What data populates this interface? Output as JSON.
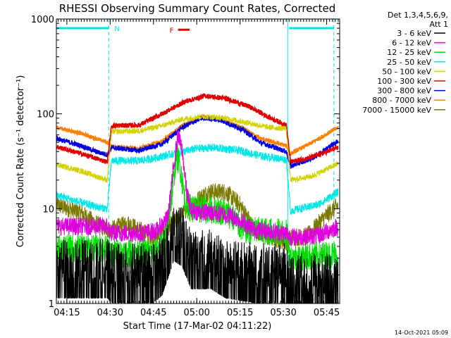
{
  "chart_data": {
    "type": "line",
    "title": "RHESSI Observing Summary Count Rates, Corrected",
    "ylabel": "Corrected Count Rate (s⁻¹ detector⁻¹)",
    "xlabel": "Start Time (17-Mar-02 04:11:22)",
    "footer": "14-Oct-2021 05:09",
    "y_scale": "log",
    "ylim": [
      1,
      1000
    ],
    "xlim": [
      "04:11:22",
      "05:49:30"
    ],
    "y_ticks": [
      {
        "value": 1,
        "label": "1"
      },
      {
        "value": 10,
        "label": "10"
      },
      {
        "value": 100,
        "label": "100"
      },
      {
        "value": 1000,
        "label": "1000"
      }
    ],
    "x_ticks": [
      "04:15",
      "04:30",
      "04:45",
      "05:00",
      "05:15",
      "05:30",
      "05:45"
    ],
    "legend": {
      "position": "right",
      "header": [
        "Det 1,3,4,5,6,9,",
        "Att 1"
      ]
    },
    "flags": [
      {
        "label": "N",
        "color": "#00e5e5",
        "level": 800,
        "spans": [
          [
            "04:11:22",
            "04:29:30"
          ],
          [
            "05:32:00",
            "05:47:30"
          ]
        ]
      },
      {
        "label": "F",
        "color": "#e00000",
        "level": 770,
        "spans": [
          [
            "04:53:30",
            "04:57:30"
          ]
        ]
      }
    ],
    "night_lines": [
      {
        "time": "04:29:30",
        "style": "dashed"
      },
      {
        "time": "05:31:30",
        "style": "solid"
      },
      {
        "time": "05:47:30",
        "style": "dashed"
      }
    ],
    "series": [
      {
        "name": "3 - 6 keV",
        "color": "#000000",
        "points": [
          [
            "04:11:30",
            2.8
          ],
          [
            "04:29:00",
            2.8
          ],
          [
            "04:30:30",
            2.5
          ],
          [
            "04:45:00",
            2.5
          ],
          [
            "04:48:00",
            3.0
          ],
          [
            "04:50:00",
            4.5
          ],
          [
            "04:52:00",
            7.0
          ],
          [
            "04:55:00",
            6.0
          ],
          [
            "04:58:00",
            3.5
          ],
          [
            "05:05:00",
            3.5
          ],
          [
            "05:10:00",
            2.8
          ],
          [
            "05:20:00",
            2.5
          ],
          [
            "05:31:00",
            2.5
          ],
          [
            "05:32:30",
            2.0
          ],
          [
            "05:49:00",
            2.0
          ]
        ]
      },
      {
        "name": "6 - 12 keV",
        "color": "#e000e0",
        "points": [
          [
            "04:11:30",
            6.5
          ],
          [
            "04:29:00",
            6.5
          ],
          [
            "04:30:30",
            5.5
          ],
          [
            "04:40:00",
            5.5
          ],
          [
            "04:46:00",
            5.8
          ],
          [
            "04:50:00",
            8.0
          ],
          [
            "04:52:00",
            28
          ],
          [
            "04:53:30",
            60
          ],
          [
            "04:55:00",
            40
          ],
          [
            "04:56:30",
            15
          ],
          [
            "04:58:00",
            9.5
          ],
          [
            "05:05:00",
            9.0
          ],
          [
            "05:12:00",
            8.5
          ],
          [
            "05:20:00",
            6.0
          ],
          [
            "05:31:00",
            5.5
          ],
          [
            "05:32:30",
            5.0
          ],
          [
            "05:42:00",
            5.2
          ],
          [
            "05:49:00",
            6.5
          ]
        ]
      },
      {
        "name": "12 - 25 keV",
        "color": "#00e000",
        "points": [
          [
            "04:11:30",
            3.8
          ],
          [
            "04:29:00",
            3.8
          ],
          [
            "04:30:30",
            3.4
          ],
          [
            "04:45:00",
            3.4
          ],
          [
            "04:49:00",
            4.5
          ],
          [
            "04:51:30",
            15
          ],
          [
            "04:53:00",
            38
          ],
          [
            "04:54:30",
            25
          ],
          [
            "04:56:00",
            12
          ],
          [
            "04:58:00",
            10
          ],
          [
            "05:08:00",
            9.5
          ],
          [
            "05:12:00",
            8.5
          ],
          [
            "05:16:00",
            6.0
          ],
          [
            "05:31:00",
            5.5
          ],
          [
            "05:32:30",
            3.0
          ],
          [
            "05:49:00",
            3.3
          ]
        ]
      },
      {
        "name": "25 - 50 keV",
        "color": "#00e8e8",
        "points": [
          [
            "04:11:30",
            14
          ],
          [
            "04:18:00",
            12
          ],
          [
            "04:25:00",
            10.5
          ],
          [
            "04:29:00",
            10
          ],
          [
            "04:30:30",
            32
          ],
          [
            "04:40:00",
            32
          ],
          [
            "04:45:00",
            34
          ],
          [
            "04:52:00",
            38
          ],
          [
            "05:00:00",
            43
          ],
          [
            "05:06:00",
            44
          ],
          [
            "05:15:00",
            41
          ],
          [
            "05:22:00",
            36
          ],
          [
            "05:31:00",
            33
          ],
          [
            "05:32:30",
            9.5
          ],
          [
            "05:42:00",
            11
          ],
          [
            "05:49:00",
            15
          ]
        ]
      },
      {
        "name": "50 - 100 keV",
        "color": "#d2d200",
        "points": [
          [
            "04:11:30",
            29
          ],
          [
            "04:20:00",
            25
          ],
          [
            "04:25:00",
            22
          ],
          [
            "04:29:00",
            20
          ],
          [
            "04:30:30",
            65
          ],
          [
            "04:40:00",
            66
          ],
          [
            "04:48:00",
            75
          ],
          [
            "04:55:00",
            88
          ],
          [
            "05:02:00",
            94
          ],
          [
            "05:10:00",
            90
          ],
          [
            "05:18:00",
            80
          ],
          [
            "05:25:00",
            72
          ],
          [
            "05:31:00",
            70
          ],
          [
            "05:32:30",
            20
          ],
          [
            "05:40:00",
            22
          ],
          [
            "05:49:00",
            30
          ]
        ]
      },
      {
        "name": "100 - 300 keV",
        "color": "#e00000",
        "points": [
          [
            "04:11:30",
            45
          ],
          [
            "04:20:00",
            38
          ],
          [
            "04:25:00",
            34
          ],
          [
            "04:29:00",
            31
          ],
          [
            "04:30:30",
            75
          ],
          [
            "04:40:00",
            76
          ],
          [
            "04:48:00",
            100
          ],
          [
            "04:56:00",
            135
          ],
          [
            "05:03:00",
            155
          ],
          [
            "05:10:00",
            145
          ],
          [
            "05:18:00",
            120
          ],
          [
            "05:25:00",
            92
          ],
          [
            "05:31:00",
            76
          ],
          [
            "05:32:30",
            31
          ],
          [
            "05:40:00",
            35
          ],
          [
            "05:49:00",
            44
          ]
        ]
      },
      {
        "name": "300 - 800 keV",
        "color": "#0000e0",
        "points": [
          [
            "04:11:30",
            55
          ],
          [
            "04:20:00",
            46
          ],
          [
            "04:25:00",
            40
          ],
          [
            "04:29:00",
            37
          ],
          [
            "04:30:30",
            44
          ],
          [
            "04:40:00",
            41
          ],
          [
            "04:48:00",
            48
          ],
          [
            "04:55:00",
            72
          ],
          [
            "05:02:00",
            91
          ],
          [
            "05:08:00",
            86
          ],
          [
            "05:16:00",
            68
          ],
          [
            "05:22:00",
            50
          ],
          [
            "05:31:00",
            40
          ],
          [
            "05:32:30",
            28
          ],
          [
            "05:40:00",
            34
          ],
          [
            "05:49:00",
            52
          ]
        ]
      },
      {
        "name": "800 - 7000 keV",
        "color": "#ff8000",
        "points": [
          [
            "04:11:30",
            72
          ],
          [
            "04:20:00",
            62
          ],
          [
            "04:25:00",
            55
          ],
          [
            "04:29:00",
            50
          ],
          [
            "04:30:30",
            45
          ],
          [
            "04:40:00",
            43
          ],
          [
            "04:48:00",
            52
          ],
          [
            "04:55:00",
            75
          ],
          [
            "05:02:00",
            94
          ],
          [
            "05:08:00",
            88
          ],
          [
            "05:16:00",
            70
          ],
          [
            "05:22:00",
            55
          ],
          [
            "05:31:00",
            46
          ],
          [
            "05:32:30",
            38
          ],
          [
            "05:40:00",
            50
          ],
          [
            "05:49:00",
            72
          ]
        ]
      },
      {
        "name": "7000 - 15000 keV",
        "color": "#7a7a00",
        "points": [
          [
            "04:11:30",
            11
          ],
          [
            "04:20:00",
            9
          ],
          [
            "04:25:00",
            7
          ],
          [
            "04:29:00",
            6
          ],
          [
            "04:30:30",
            6
          ],
          [
            "04:36:00",
            7
          ],
          [
            "04:45:00",
            5
          ],
          [
            "04:52:00",
            7
          ],
          [
            "04:58:00",
            11
          ],
          [
            "05:04:00",
            15
          ],
          [
            "05:10:00",
            15
          ],
          [
            "05:15:00",
            11
          ],
          [
            "05:20:00",
            6
          ],
          [
            "05:25:00",
            5
          ],
          [
            "05:31:00",
            4.5
          ],
          [
            "05:32:30",
            5
          ],
          [
            "05:38:00",
            5
          ],
          [
            "05:44:00",
            8
          ],
          [
            "05:49:00",
            11
          ]
        ]
      }
    ]
  }
}
